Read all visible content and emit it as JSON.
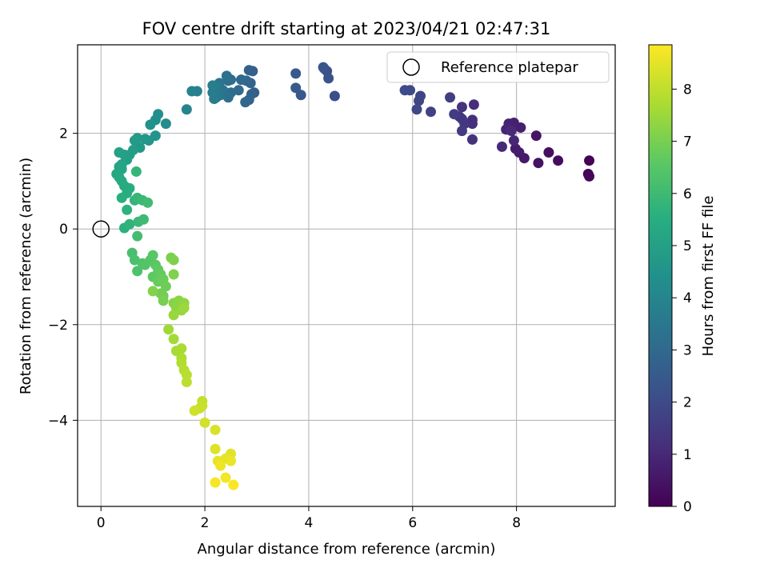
{
  "chart_data": {
    "type": "scatter",
    "title": "FOV centre drift starting at 2023/04/21 02:47:31",
    "xlabel": "Angular distance from reference (arcmin)",
    "ylabel": "Rotation from reference (arcmin)",
    "xlim": [
      -0.45,
      9.9
    ],
    "ylim": [
      -5.8,
      3.85
    ],
    "xticks": [
      0,
      2,
      4,
      6,
      8
    ],
    "xtick_labels": [
      "0",
      "2",
      "4",
      "6",
      "8"
    ],
    "yticks": [
      -4,
      -2,
      0,
      2
    ],
    "ytick_labels": [
      "−4",
      "−2",
      "0",
      "2"
    ],
    "grid": true,
    "legend": {
      "position": "top-right",
      "entries": [
        "Reference platepar"
      ]
    },
    "reference_point": {
      "x": 0,
      "y": 0,
      "label": "Reference platepar"
    },
    "colorbar": {
      "label": "Hours from first FF file",
      "range": [
        0,
        8.85
      ],
      "ticks": [
        0,
        1,
        2,
        3,
        4,
        5,
        6,
        7,
        8
      ],
      "tick_labels": [
        "0",
        "1",
        "2",
        "3",
        "4",
        "5",
        "6",
        "7",
        "8"
      ],
      "colormap": "viridis"
    },
    "points": [
      {
        "x": 9.4,
        "y": 1.43,
        "hours": 0.05
      },
      {
        "x": 9.38,
        "y": 1.15,
        "hours": 0.1
      },
      {
        "x": 9.4,
        "y": 1.1,
        "hours": 0.15
      },
      {
        "x": 8.8,
        "y": 1.43,
        "hours": 0.3
      },
      {
        "x": 8.62,
        "y": 1.6,
        "hours": 0.35
      },
      {
        "x": 8.42,
        "y": 1.38,
        "hours": 0.45
      },
      {
        "x": 8.38,
        "y": 1.95,
        "hours": 0.5
      },
      {
        "x": 8.15,
        "y": 1.48,
        "hours": 0.6
      },
      {
        "x": 8.05,
        "y": 1.6,
        "hours": 0.65
      },
      {
        "x": 7.98,
        "y": 1.68,
        "hours": 0.7
      },
      {
        "x": 8.08,
        "y": 2.12,
        "hours": 0.75
      },
      {
        "x": 7.95,
        "y": 2.22,
        "hours": 0.8
      },
      {
        "x": 7.85,
        "y": 2.2,
        "hours": 0.85
      },
      {
        "x": 7.8,
        "y": 2.08,
        "hours": 0.9
      },
      {
        "x": 7.95,
        "y": 1.85,
        "hours": 0.95
      },
      {
        "x": 7.72,
        "y": 1.72,
        "hours": 1.0
      },
      {
        "x": 7.9,
        "y": 2.05,
        "hours": 1.05
      },
      {
        "x": 7.18,
        "y": 2.6,
        "hours": 1.1
      },
      {
        "x": 7.15,
        "y": 2.28,
        "hours": 1.15
      },
      {
        "x": 7.15,
        "y": 2.2,
        "hours": 1.2
      },
      {
        "x": 7.15,
        "y": 1.87,
        "hours": 1.25
      },
      {
        "x": 6.95,
        "y": 2.55,
        "hours": 1.3
      },
      {
        "x": 6.9,
        "y": 2.35,
        "hours": 1.35
      },
      {
        "x": 6.95,
        "y": 2.3,
        "hours": 1.4
      },
      {
        "x": 7.0,
        "y": 2.2,
        "hours": 1.45
      },
      {
        "x": 6.95,
        "y": 2.05,
        "hours": 1.5
      },
      {
        "x": 6.8,
        "y": 2.4,
        "hours": 1.55
      },
      {
        "x": 6.72,
        "y": 2.75,
        "hours": 1.6
      },
      {
        "x": 6.35,
        "y": 2.45,
        "hours": 1.7
      },
      {
        "x": 6.15,
        "y": 2.78,
        "hours": 1.8
      },
      {
        "x": 6.12,
        "y": 2.68,
        "hours": 1.85
      },
      {
        "x": 6.08,
        "y": 2.5,
        "hours": 1.9
      },
      {
        "x": 5.95,
        "y": 2.9,
        "hours": 1.95
      },
      {
        "x": 5.85,
        "y": 2.9,
        "hours": 2.0
      },
      {
        "x": 4.5,
        "y": 2.78,
        "hours": 2.1
      },
      {
        "x": 4.35,
        "y": 3.3,
        "hours": 2.15
      },
      {
        "x": 4.3,
        "y": 3.35,
        "hours": 2.2
      },
      {
        "x": 4.38,
        "y": 3.15,
        "hours": 2.25
      },
      {
        "x": 4.28,
        "y": 3.38,
        "hours": 2.3
      },
      {
        "x": 3.85,
        "y": 2.8,
        "hours": 2.4
      },
      {
        "x": 3.75,
        "y": 3.25,
        "hours": 2.45
      },
      {
        "x": 3.75,
        "y": 2.95,
        "hours": 2.5
      },
      {
        "x": 2.95,
        "y": 2.85,
        "hours": 2.6
      },
      {
        "x": 2.92,
        "y": 3.3,
        "hours": 2.65
      },
      {
        "x": 2.85,
        "y": 3.32,
        "hours": 2.7
      },
      {
        "x": 2.9,
        "y": 2.82,
        "hours": 2.75
      },
      {
        "x": 2.88,
        "y": 3.05,
        "hours": 2.8
      },
      {
        "x": 2.85,
        "y": 2.7,
        "hours": 2.85
      },
      {
        "x": 2.8,
        "y": 3.1,
        "hours": 2.9
      },
      {
        "x": 2.78,
        "y": 2.65,
        "hours": 2.95
      },
      {
        "x": 2.7,
        "y": 3.12,
        "hours": 3.0
      },
      {
        "x": 2.65,
        "y": 2.9,
        "hours": 3.05
      },
      {
        "x": 2.5,
        "y": 3.12,
        "hours": 3.1
      },
      {
        "x": 2.5,
        "y": 2.85,
        "hours": 3.15
      },
      {
        "x": 2.45,
        "y": 2.75,
        "hours": 3.2
      },
      {
        "x": 2.45,
        "y": 3.1,
        "hours": 3.25
      },
      {
        "x": 2.42,
        "y": 3.2,
        "hours": 3.3
      },
      {
        "x": 2.35,
        "y": 2.9,
        "hours": 3.35
      },
      {
        "x": 2.3,
        "y": 2.8,
        "hours": 3.4
      },
      {
        "x": 2.28,
        "y": 3.05,
        "hours": 3.45
      },
      {
        "x": 2.25,
        "y": 2.92,
        "hours": 3.5
      },
      {
        "x": 2.22,
        "y": 2.75,
        "hours": 3.55
      },
      {
        "x": 2.2,
        "y": 2.98,
        "hours": 3.6
      },
      {
        "x": 2.18,
        "y": 2.72,
        "hours": 3.65
      },
      {
        "x": 2.15,
        "y": 2.85,
        "hours": 3.7
      },
      {
        "x": 2.15,
        "y": 3.0,
        "hours": 3.75
      },
      {
        "x": 1.85,
        "y": 2.88,
        "hours": 3.85
      },
      {
        "x": 1.75,
        "y": 2.88,
        "hours": 3.9
      },
      {
        "x": 1.65,
        "y": 2.5,
        "hours": 3.95
      },
      {
        "x": 1.25,
        "y": 2.2,
        "hours": 4.3
      },
      {
        "x": 1.1,
        "y": 2.4,
        "hours": 4.35
      },
      {
        "x": 1.05,
        "y": 2.28,
        "hours": 4.4
      },
      {
        "x": 0.95,
        "y": 2.18,
        "hours": 4.5
      },
      {
        "x": 1.05,
        "y": 1.95,
        "hours": 4.55
      },
      {
        "x": 0.92,
        "y": 1.85,
        "hours": 4.6
      },
      {
        "x": 0.85,
        "y": 1.88,
        "hours": 4.65
      },
      {
        "x": 0.75,
        "y": 1.7,
        "hours": 4.7
      },
      {
        "x": 0.7,
        "y": 1.9,
        "hours": 4.75
      },
      {
        "x": 0.65,
        "y": 1.85,
        "hours": 4.8
      },
      {
        "x": 0.62,
        "y": 1.65,
        "hours": 4.85
      },
      {
        "x": 0.55,
        "y": 1.55,
        "hours": 4.9
      },
      {
        "x": 0.5,
        "y": 1.45,
        "hours": 4.95
      },
      {
        "x": 0.45,
        "y": 1.55,
        "hours": 5.0
      },
      {
        "x": 0.35,
        "y": 1.6,
        "hours": 5.05
      },
      {
        "x": 0.4,
        "y": 1.35,
        "hours": 5.1
      },
      {
        "x": 0.35,
        "y": 1.3,
        "hours": 5.15
      },
      {
        "x": 0.4,
        "y": 1.25,
        "hours": 5.2
      },
      {
        "x": 0.3,
        "y": 1.15,
        "hours": 5.25
      },
      {
        "x": 0.35,
        "y": 1.08,
        "hours": 5.3
      },
      {
        "x": 0.4,
        "y": 1.0,
        "hours": 5.35
      },
      {
        "x": 0.45,
        "y": 0.9,
        "hours": 5.4
      },
      {
        "x": 0.55,
        "y": 0.85,
        "hours": 5.45
      },
      {
        "x": 0.5,
        "y": 0.75,
        "hours": 5.5
      },
      {
        "x": 0.4,
        "y": 0.65,
        "hours": 5.55
      },
      {
        "x": 0.45,
        "y": 0.02,
        "hours": 5.6
      },
      {
        "x": 0.5,
        "y": 0.4,
        "hours": 5.65
      },
      {
        "x": 0.55,
        "y": 0.1,
        "hours": 5.7
      },
      {
        "x": 0.65,
        "y": 0.6,
        "hours": 5.75
      },
      {
        "x": 0.68,
        "y": 1.2,
        "hours": 5.8
      },
      {
        "x": 0.7,
        "y": 0.65,
        "hours": 5.85
      },
      {
        "x": 0.72,
        "y": 0.15,
        "hours": 5.9
      },
      {
        "x": 0.8,
        "y": 0.6,
        "hours": 5.95
      },
      {
        "x": 0.82,
        "y": 0.2,
        "hours": 6.0
      },
      {
        "x": 0.9,
        "y": 0.55,
        "hours": 6.05
      },
      {
        "x": 0.7,
        "y": -0.15,
        "hours": 6.1
      },
      {
        "x": 0.6,
        "y": -0.5,
        "hours": 6.2
      },
      {
        "x": 0.65,
        "y": -0.65,
        "hours": 6.25
      },
      {
        "x": 0.7,
        "y": -0.88,
        "hours": 6.3
      },
      {
        "x": 0.8,
        "y": -0.72,
        "hours": 6.35
      },
      {
        "x": 0.85,
        "y": -0.75,
        "hours": 6.4
      },
      {
        "x": 0.95,
        "y": -0.65,
        "hours": 6.45
      },
      {
        "x": 1.0,
        "y": -0.55,
        "hours": 6.5
      },
      {
        "x": 1.05,
        "y": -0.75,
        "hours": 6.55
      },
      {
        "x": 1.0,
        "y": -1.0,
        "hours": 6.6
      },
      {
        "x": 1.1,
        "y": -0.85,
        "hours": 6.65
      },
      {
        "x": 1.15,
        "y": -0.95,
        "hours": 6.7
      },
      {
        "x": 1.1,
        "y": -1.1,
        "hours": 6.75
      },
      {
        "x": 1.2,
        "y": -1.05,
        "hours": 6.8
      },
      {
        "x": 1.25,
        "y": -1.2,
        "hours": 6.85
      },
      {
        "x": 1.2,
        "y": -1.4,
        "hours": 6.9
      },
      {
        "x": 1.15,
        "y": -1.35,
        "hours": 6.95
      },
      {
        "x": 1.2,
        "y": -1.5,
        "hours": 7.0
      },
      {
        "x": 1.35,
        "y": -0.6,
        "hours": 7.05
      },
      {
        "x": 1.4,
        "y": -0.65,
        "hours": 7.1
      },
      {
        "x": 1.4,
        "y": -0.95,
        "hours": 7.12
      },
      {
        "x": 1.0,
        "y": -1.3,
        "hours": 7.15
      },
      {
        "x": 1.4,
        "y": -1.55,
        "hours": 7.2
      },
      {
        "x": 1.45,
        "y": -1.65,
        "hours": 7.25
      },
      {
        "x": 1.5,
        "y": -1.5,
        "hours": 7.3
      },
      {
        "x": 1.6,
        "y": -1.55,
        "hours": 7.35
      },
      {
        "x": 1.55,
        "y": -1.7,
        "hours": 7.4
      },
      {
        "x": 1.4,
        "y": -1.8,
        "hours": 7.45
      },
      {
        "x": 1.6,
        "y": -1.65,
        "hours": 7.5
      },
      {
        "x": 1.3,
        "y": -2.1,
        "hours": 7.55
      },
      {
        "x": 1.4,
        "y": -2.3,
        "hours": 7.6
      },
      {
        "x": 1.45,
        "y": -2.55,
        "hours": 7.65
      },
      {
        "x": 1.55,
        "y": -2.5,
        "hours": 7.7
      },
      {
        "x": 1.55,
        "y": -2.7,
        "hours": 7.75
      },
      {
        "x": 1.55,
        "y": -2.8,
        "hours": 7.8
      },
      {
        "x": 1.6,
        "y": -2.95,
        "hours": 7.85
      },
      {
        "x": 1.65,
        "y": -3.05,
        "hours": 7.9
      },
      {
        "x": 1.65,
        "y": -3.2,
        "hours": 7.95
      },
      {
        "x": 1.95,
        "y": -3.6,
        "hours": 8.05
      },
      {
        "x": 1.95,
        "y": -3.7,
        "hours": 8.1
      },
      {
        "x": 1.9,
        "y": -3.75,
        "hours": 8.15
      },
      {
        "x": 1.8,
        "y": -3.8,
        "hours": 8.2
      },
      {
        "x": 2.0,
        "y": -4.05,
        "hours": 8.25
      },
      {
        "x": 2.2,
        "y": -4.2,
        "hours": 8.35
      },
      {
        "x": 2.2,
        "y": -4.6,
        "hours": 8.4
      },
      {
        "x": 2.5,
        "y": -4.7,
        "hours": 8.45
      },
      {
        "x": 2.4,
        "y": -4.8,
        "hours": 8.5
      },
      {
        "x": 2.25,
        "y": -4.85,
        "hours": 8.55
      },
      {
        "x": 2.5,
        "y": -4.85,
        "hours": 8.6
      },
      {
        "x": 2.3,
        "y": -4.95,
        "hours": 8.65
      },
      {
        "x": 2.4,
        "y": -5.2,
        "hours": 8.7
      },
      {
        "x": 2.2,
        "y": -5.3,
        "hours": 8.75
      },
      {
        "x": 2.55,
        "y": -5.35,
        "hours": 8.8
      }
    ]
  }
}
